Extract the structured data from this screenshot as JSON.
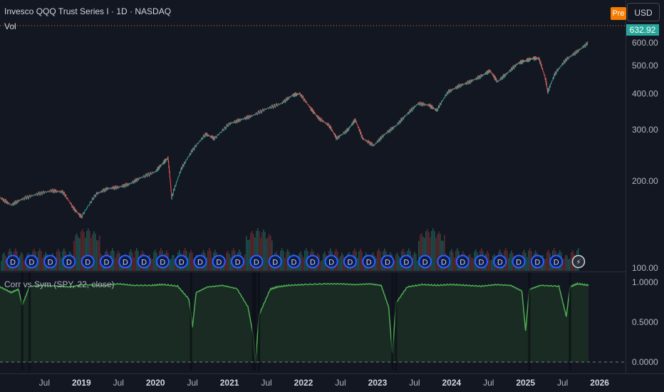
{
  "header": {
    "title": "Invesco QQQ Trust Series I · 1D · NASDAQ",
    "volume_label": "Vol",
    "indicator_label": "Corr vs Sym (SPY, 22, close)",
    "session_badge": "Pre",
    "currency": "USD",
    "last_price": "632.92"
  },
  "colors": {
    "background": "#131722",
    "up": "#26a69a",
    "down": "#ef5350",
    "indicator_line": "#4caf50",
    "indicator_fill": "#1b2e22",
    "dividend_marker": "#2962ff"
  },
  "chart_data": [
    {
      "type": "line",
      "title": "Invesco QQQ Trust Series I · 1D · NASDAQ",
      "xlabel": "",
      "ylabel": "",
      "price_scale": "log",
      "ylim": [
        100,
        700
      ],
      "y_ticks": [
        "600.00",
        "500.00",
        "400.00",
        "300.00",
        "200.00",
        "100.00"
      ],
      "x_ticks": [
        "Jul",
        "2019",
        "Jul",
        "2020",
        "Jul",
        "2021",
        "Jul",
        "2022",
        "Jul",
        "2023",
        "Jul",
        "2024",
        "Jul",
        "2025",
        "Jul",
        "2026"
      ],
      "last_value": 632.92,
      "series": [
        {
          "x": [
            2017.9,
            2018.05,
            2018.2,
            2018.4,
            2018.6,
            2018.75,
            2018.9,
            2019.0,
            2019.2,
            2019.35,
            2019.5,
            2019.65,
            2019.8,
            2020.0,
            2020.1,
            2020.17,
            2020.22,
            2020.35,
            2020.5,
            2020.68,
            2020.8,
            2021.0,
            2021.15,
            2021.3,
            2021.5,
            2021.7,
            2021.85,
            2021.95,
            2022.1,
            2022.2,
            2022.35,
            2022.45,
            2022.6,
            2022.7,
            2022.8,
            2022.95,
            2023.1,
            2023.25,
            2023.4,
            2023.55,
            2023.7,
            2023.8,
            2023.95,
            2024.1,
            2024.25,
            2024.4,
            2024.52,
            2024.62,
            2024.75,
            2024.9,
            2025.0,
            2025.1,
            2025.18,
            2025.27,
            2025.3,
            2025.4,
            2025.55,
            2025.7,
            2025.85
          ],
          "values": [
            175,
            165,
            173,
            180,
            185,
            183,
            160,
            150,
            180,
            188,
            190,
            195,
            205,
            215,
            230,
            240,
            175,
            220,
            255,
            290,
            280,
            315,
            325,
            335,
            355,
            370,
            395,
            400,
            355,
            330,
            310,
            280,
            300,
            325,
            280,
            265,
            290,
            310,
            340,
            370,
            365,
            350,
            405,
            425,
            440,
            460,
            480,
            440,
            470,
            510,
            520,
            530,
            530,
            450,
            405,
            470,
            525,
            560,
            600
          ]
        }
      ]
    },
    {
      "type": "bar",
      "title": "Vol",
      "xlabel": "",
      "ylabel": "",
      "note_marker": "D",
      "series": []
    },
    {
      "type": "area",
      "title": "Corr vs Sym (SPY, 22, close)",
      "xlabel": "",
      "ylabel": "",
      "ylim": [
        0,
        1.05
      ],
      "y_ticks": [
        "1.0000",
        "0.5000",
        "0.0000"
      ],
      "series": [
        {
          "x": [
            2017.9,
            2018.05,
            2018.15,
            2018.2,
            2018.3,
            2018.5,
            2018.7,
            2018.85,
            2019.0,
            2019.3,
            2019.5,
            2019.7,
            2019.95,
            2020.1,
            2020.3,
            2020.45,
            2020.48,
            2020.5,
            2020.55,
            2020.7,
            2020.9,
            2021.1,
            2021.25,
            2021.32,
            2021.35,
            2021.4,
            2021.55,
            2021.65,
            2021.8,
            2022.0,
            2022.3,
            2022.5,
            2022.7,
            2022.9,
            2023.05,
            2023.15,
            2023.2,
            2023.25,
            2023.4,
            2023.6,
            2023.8,
            2024.0,
            2024.2,
            2024.4,
            2024.6,
            2024.8,
            2024.95,
            2025.0,
            2025.05,
            2025.2,
            2025.45,
            2025.55,
            2025.6,
            2025.7,
            2025.85
          ],
          "values": [
            0.95,
            0.88,
            0.92,
            0.72,
            0.96,
            0.97,
            0.96,
            0.95,
            0.98,
            0.97,
            0.99,
            0.97,
            0.97,
            0.98,
            0.96,
            0.8,
            0.62,
            0.45,
            0.88,
            0.95,
            0.97,
            0.93,
            0.7,
            0.35,
            0.0,
            0.6,
            0.92,
            0.95,
            0.97,
            0.98,
            0.99,
            0.99,
            0.98,
            0.99,
            0.97,
            0.7,
            0.12,
            0.75,
            0.95,
            0.98,
            0.97,
            0.98,
            0.97,
            0.96,
            0.98,
            0.97,
            0.9,
            0.4,
            0.92,
            0.97,
            0.96,
            0.58,
            0.95,
            0.99,
            0.97
          ]
        }
      ]
    }
  ]
}
